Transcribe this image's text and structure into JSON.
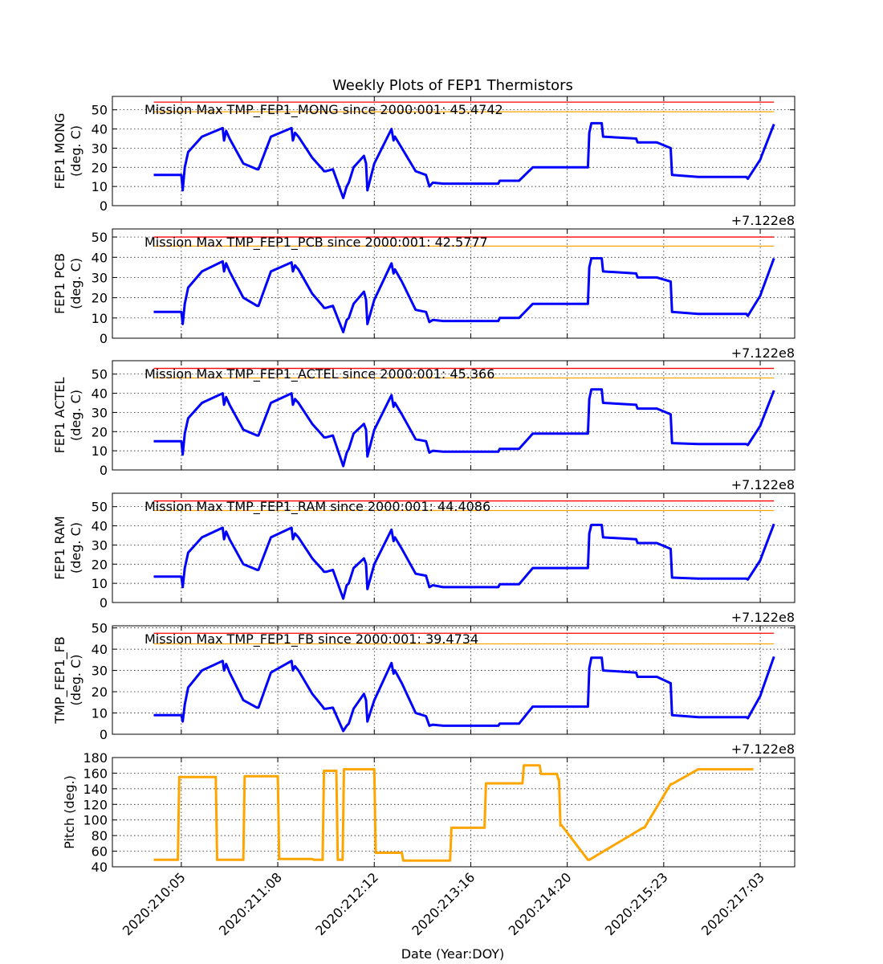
{
  "figure": {
    "title": "Weekly Plots of FEP1 Thermistors",
    "xlabel": "Date (Year:DOY)",
    "offset_text": "+7.122e8"
  },
  "chart_data": [
    {
      "type": "line",
      "ylabel": [
        "FEP1 MONG",
        "(deg. C)"
      ],
      "annotation": "Mission Max TMP_FEP1_MONG since 2000:001: 45.4742",
      "ylim": [
        0,
        57
      ],
      "yticks": [
        0,
        10,
        20,
        30,
        40,
        50
      ],
      "limits": {
        "red": 54,
        "yellow": 49
      },
      "x": [
        0,
        0.4,
        0.42,
        0.45,
        0.5,
        0.7,
        1.0,
        1.02,
        1.05,
        1.1,
        1.3,
        1.5,
        1.52,
        1.7,
        2.0,
        2.02,
        2.05,
        2.1,
        2.3,
        2.45,
        2.47,
        2.5,
        2.6,
        2.75,
        2.8,
        2.83,
        2.9,
        3.05,
        3.08,
        3.1,
        3.2,
        3.45,
        3.48,
        3.5,
        3.6,
        3.8,
        3.95,
        4.0,
        4.05,
        4.2,
        5.0,
        5.02,
        5.3,
        5.5,
        5.52,
        6.3,
        6.32,
        6.35,
        6.5,
        6.52,
        7.0,
        7.02,
        7.3,
        7.5,
        7.52,
        7.9,
        8.6,
        8.62,
        8.8,
        8.82,
        9.0
      ],
      "values": [
        16,
        16,
        8,
        20,
        28,
        36,
        40.5,
        34,
        39,
        35,
        22,
        19,
        19,
        36,
        40.5,
        34,
        38,
        36,
        25,
        19,
        18,
        18,
        19,
        4,
        10,
        12,
        20,
        26,
        22,
        8,
        22,
        40,
        34,
        36,
        30,
        18,
        16,
        10,
        12,
        11.5,
        11.5,
        13,
        13,
        20,
        20,
        20,
        38,
        43,
        43,
        36,
        35,
        33,
        33,
        30,
        16,
        15,
        15,
        14,
        24,
        26,
        42.5
      ]
    },
    {
      "type": "line",
      "ylabel": [
        "FEP1 PCB",
        "(deg. C)"
      ],
      "annotation": "Mission Max TMP_FEP1_PCB since 2000:001: 42.5777",
      "ylim": [
        0,
        54
      ],
      "yticks": [
        0,
        10,
        20,
        30,
        40,
        50
      ],
      "limits": {
        "red": 50,
        "yellow": 45.5
      },
      "x": [
        0,
        0.4,
        0.42,
        0.45,
        0.5,
        0.7,
        1.0,
        1.02,
        1.05,
        1.1,
        1.3,
        1.5,
        1.52,
        1.7,
        2.0,
        2.02,
        2.05,
        2.1,
        2.3,
        2.45,
        2.47,
        2.5,
        2.6,
        2.75,
        2.8,
        2.83,
        2.9,
        3.05,
        3.08,
        3.1,
        3.2,
        3.45,
        3.48,
        3.5,
        3.6,
        3.8,
        3.95,
        4.0,
        4.05,
        4.2,
        5.0,
        5.02,
        5.3,
        5.5,
        5.52,
        6.3,
        6.32,
        6.35,
        6.5,
        6.52,
        7.0,
        7.02,
        7.3,
        7.5,
        7.52,
        7.9,
        8.6,
        8.62,
        8.8,
        8.82,
        9.0
      ],
      "values": [
        13,
        13,
        7,
        17,
        25,
        33,
        38,
        33,
        37,
        33,
        20,
        16,
        16,
        33,
        37.5,
        33,
        36,
        34,
        22,
        16,
        15,
        15,
        16,
        3,
        9,
        10,
        17,
        23,
        19,
        7,
        19,
        37,
        32,
        34,
        28,
        14,
        13,
        8,
        9,
        8.5,
        8.5,
        10,
        10,
        17,
        17,
        17,
        35,
        39.5,
        39.5,
        33,
        32,
        30,
        30,
        28,
        13,
        12,
        12,
        11,
        21,
        23,
        39.5
      ]
    },
    {
      "type": "line",
      "ylabel": [
        "FEP1 ACTEL",
        "(deg. C)"
      ],
      "annotation": "Mission Max TMP_FEP1_ACTEL since 2000:001: 45.366",
      "ylim": [
        0,
        57
      ],
      "yticks": [
        0,
        10,
        20,
        30,
        40,
        50
      ],
      "limits": {
        "red": 53,
        "yellow": 48
      },
      "x": [
        0,
        0.4,
        0.42,
        0.45,
        0.5,
        0.7,
        1.0,
        1.02,
        1.05,
        1.1,
        1.3,
        1.5,
        1.52,
        1.7,
        2.0,
        2.02,
        2.05,
        2.1,
        2.3,
        2.45,
        2.47,
        2.5,
        2.6,
        2.75,
        2.8,
        2.83,
        2.9,
        3.05,
        3.08,
        3.1,
        3.2,
        3.45,
        3.48,
        3.5,
        3.6,
        3.8,
        3.95,
        4.0,
        4.05,
        4.2,
        5.0,
        5.02,
        5.3,
        5.5,
        5.52,
        6.3,
        6.32,
        6.35,
        6.5,
        6.52,
        7.0,
        7.02,
        7.3,
        7.5,
        7.52,
        7.9,
        8.6,
        8.62,
        8.8,
        8.82,
        9.0
      ],
      "values": [
        15,
        15,
        8,
        19,
        27,
        35,
        40,
        34,
        38,
        34,
        21,
        18,
        18,
        35,
        40,
        34,
        37,
        35,
        24,
        18,
        17,
        17,
        18,
        2,
        9,
        11,
        19,
        24,
        21,
        7,
        21,
        39,
        33,
        35,
        29,
        16,
        15,
        9,
        10,
        9.5,
        9.5,
        11,
        11,
        19,
        19,
        19,
        37,
        42,
        42,
        35,
        34,
        32,
        32,
        29,
        14,
        13.5,
        13.5,
        13,
        23,
        25,
        41.5
      ]
    },
    {
      "type": "line",
      "ylabel": [
        "FEP1 RAM",
        "(deg. C)"
      ],
      "annotation": "Mission Max TMP_FEP1_RAM since 2000:001: 44.4086",
      "ylim": [
        0,
        57
      ],
      "yticks": [
        0,
        10,
        20,
        30,
        40,
        50
      ],
      "limits": {
        "red": 53,
        "yellow": 48
      },
      "x": [
        0,
        0.4,
        0.42,
        0.45,
        0.5,
        0.7,
        1.0,
        1.02,
        1.05,
        1.1,
        1.3,
        1.5,
        1.52,
        1.7,
        2.0,
        2.02,
        2.05,
        2.1,
        2.3,
        2.45,
        2.47,
        2.5,
        2.6,
        2.75,
        2.8,
        2.83,
        2.9,
        3.05,
        3.08,
        3.1,
        3.2,
        3.45,
        3.48,
        3.5,
        3.6,
        3.8,
        3.95,
        4.0,
        4.05,
        4.2,
        5.0,
        5.02,
        5.3,
        5.5,
        5.52,
        6.3,
        6.32,
        6.35,
        6.5,
        6.52,
        7.0,
        7.02,
        7.3,
        7.5,
        7.52,
        7.9,
        8.6,
        8.62,
        8.8,
        8.82,
        9.0
      ],
      "values": [
        13.5,
        13.5,
        8,
        18,
        26,
        34,
        39,
        33,
        37,
        33,
        20,
        17,
        17,
        34,
        39,
        33,
        36,
        34,
        23,
        17,
        16,
        16,
        17,
        2,
        9,
        10,
        18,
        23,
        20,
        7,
        20,
        38,
        32,
        34,
        28,
        15,
        14,
        8,
        9,
        8,
        8,
        9.5,
        9.5,
        18,
        18,
        18,
        36,
        40.5,
        40.5,
        34,
        33,
        31,
        31,
        28,
        13,
        12.5,
        12.5,
        12,
        22,
        24,
        41
      ]
    },
    {
      "type": "line",
      "ylabel": [
        "TMP_FEP1_FB",
        "(deg. C)"
      ],
      "annotation": "Mission Max TMP_FEP1_FB since 2000:001: 39.4734",
      "ylim": [
        0,
        51
      ],
      "yticks": [
        0,
        10,
        20,
        30,
        40,
        50
      ],
      "limits": {
        "red": 47.5,
        "yellow": 42.5
      },
      "x": [
        0,
        0.4,
        0.42,
        0.45,
        0.5,
        0.7,
        1.0,
        1.02,
        1.05,
        1.1,
        1.3,
        1.5,
        1.52,
        1.7,
        2.0,
        2.02,
        2.05,
        2.1,
        2.3,
        2.45,
        2.47,
        2.5,
        2.6,
        2.75,
        2.8,
        2.83,
        2.9,
        3.05,
        3.08,
        3.1,
        3.2,
        3.45,
        3.48,
        3.5,
        3.6,
        3.8,
        3.95,
        4.0,
        4.05,
        4.2,
        5.0,
        5.02,
        5.3,
        5.5,
        5.52,
        6.3,
        6.32,
        6.35,
        6.5,
        6.52,
        7.0,
        7.02,
        7.3,
        7.5,
        7.52,
        7.9,
        8.6,
        8.62,
        8.8,
        8.82,
        9.0
      ],
      "values": [
        9,
        9,
        6,
        14,
        22,
        30,
        34.5,
        30,
        33,
        29,
        16,
        12.5,
        12.5,
        29,
        34.5,
        30,
        32,
        30,
        19,
        13,
        12,
        12,
        12.5,
        1.5,
        4,
        5,
        12,
        19,
        16,
        6,
        16,
        33.5,
        28.5,
        30,
        24,
        10,
        8.5,
        4,
        4.5,
        4,
        4,
        5,
        5,
        13,
        13,
        13,
        31,
        36,
        36,
        30,
        29,
        27,
        27,
        24,
        9,
        8,
        8,
        7.5,
        18,
        20,
        36.5
      ]
    },
    {
      "type": "line",
      "ylabel": [
        "Pitch (deg.)"
      ],
      "ylim": [
        40,
        180
      ],
      "yticks": [
        40,
        60,
        80,
        100,
        120,
        140,
        160,
        180
      ],
      "x": [
        0,
        0.35,
        0.37,
        0.9,
        0.92,
        1.3,
        1.32,
        1.8,
        1.82,
        2.3,
        2.32,
        2.45,
        2.47,
        2.65,
        2.67,
        2.74,
        2.76,
        3.2,
        3.22,
        3.6,
        3.62,
        4.3,
        4.32,
        4.8,
        4.82,
        5.35,
        5.37,
        5.6,
        5.62,
        5.85,
        5.87,
        5.88,
        5.9,
        5.92,
        6.3,
        6.32,
        7.1,
        7.12,
        7.5,
        7.52,
        7.9,
        7.92,
        8.3,
        8.32,
        8.7
      ],
      "values": [
        49,
        49,
        155,
        155,
        49,
        49,
        156,
        156,
        50,
        50,
        49,
        49,
        163,
        163,
        49,
        49,
        165,
        165,
        58,
        58,
        48,
        48,
        90,
        90,
        147,
        147,
        170,
        170,
        159,
        159,
        152,
        152,
        93,
        93,
        49,
        49,
        90,
        90,
        146,
        146,
        165,
        165,
        165,
        165,
        165
      ]
    }
  ],
  "x_axis": {
    "range": [
      -0.6,
      9.3
    ],
    "tick_positions": [
      0.4,
      1.8,
      3.2,
      4.6,
      6.0,
      7.4,
      8.8
    ],
    "tick_labels": [
      "2020:210:05",
      "2020:211:08",
      "2020:212:12",
      "2020:213:16",
      "2020:214:20",
      "2020:215:23",
      "2020:217:03"
    ]
  },
  "colors": {
    "temperature_line": "#0000ff",
    "pitch_line": "#ffa500",
    "red_limit": "#ff0000",
    "yellow_limit": "#ffa500"
  }
}
